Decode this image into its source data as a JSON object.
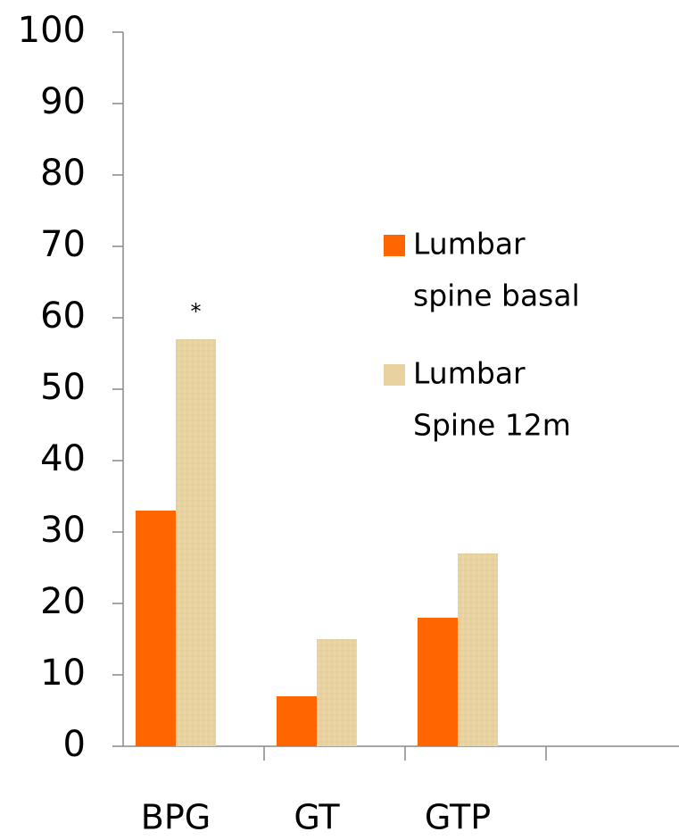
{
  "chart_data": {
    "type": "bar",
    "categories": [
      "BPG",
      "GT",
      "GTP",
      null
    ],
    "series": [
      {
        "name": [
          "Lumbar",
          "spine basal"
        ],
        "color": "#ff6600",
        "values": [
          33,
          7,
          18,
          null
        ]
      },
      {
        "name": [
          "Lumbar",
          "Spine 12m"
        ],
        "color": "#e8d3a0",
        "values": [
          57,
          15,
          27,
          null
        ]
      }
    ],
    "annotation": "*",
    "ylim": [
      0,
      100
    ],
    "yticks": [
      0,
      10,
      20,
      30,
      40,
      50,
      60,
      70,
      80,
      90,
      100
    ],
    "grid": false,
    "legend": "right"
  }
}
